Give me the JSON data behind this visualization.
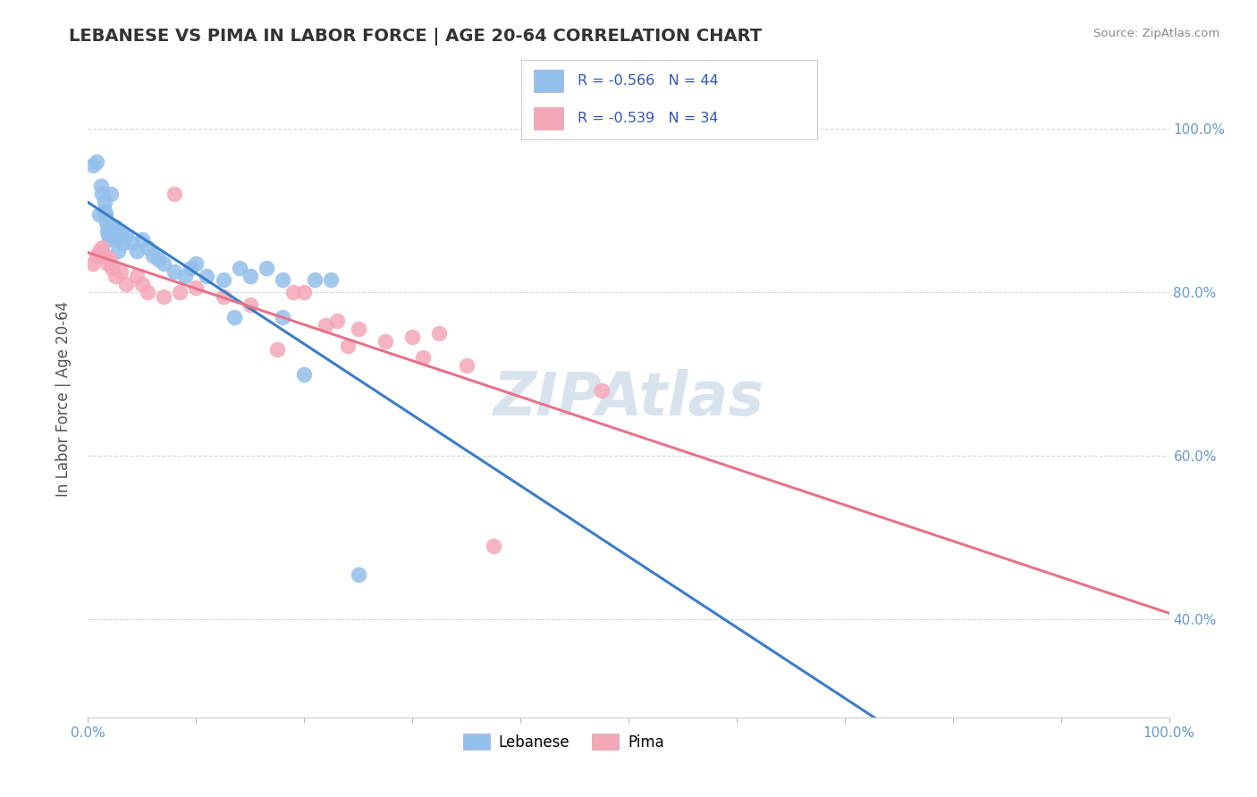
{
  "title": "LEBANESE VS PIMA IN LABOR FORCE | AGE 20-64 CORRELATION CHART",
  "source_text": "Source: ZipAtlas.com",
  "ylabel": "In Labor Force | Age 20-64",
  "xlim": [
    0.0,
    1.0
  ],
  "ylim": [
    0.28,
    1.06
  ],
  "xtick_positions": [
    0.0,
    0.1,
    0.2,
    0.3,
    0.4,
    0.5,
    0.6,
    0.7,
    0.8,
    0.9,
    1.0
  ],
  "xtick_labels_show": [
    0.0,
    1.0
  ],
  "ytick_positions": [
    0.4,
    0.6,
    0.8,
    1.0
  ],
  "legend_R_lebanese": "R = -0.566",
  "legend_N_lebanese": "N = 44",
  "legend_R_pima": "R = -0.539",
  "legend_N_pima": "N = 34",
  "lebanese_color": "#92BFEC",
  "pima_color": "#F4A7B9",
  "lebanese_line_color": "#3A7EC8",
  "pima_line_color": "#E8728A",
  "watermark_color": "#C8D8E8",
  "background_color": "#FFFFFF",
  "grid_color": "#CCCCCC",
  "title_color": "#333333",
  "axis_label_color": "#555555",
  "tick_label_color": "#6699CC",
  "source_color": "#888888",
  "legend_R_color": "#3355BB",
  "lebanese_x": [
    0.005,
    0.008,
    0.01,
    0.012,
    0.013,
    0.015,
    0.015,
    0.016,
    0.017,
    0.018,
    0.019,
    0.02,
    0.021,
    0.022,
    0.023,
    0.025,
    0.026,
    0.028,
    0.03,
    0.032,
    0.035,
    0.04,
    0.045,
    0.05,
    0.055,
    0.06,
    0.065,
    0.07,
    0.08,
    0.09,
    0.095,
    0.1,
    0.11,
    0.125,
    0.135,
    0.14,
    0.15,
    0.165,
    0.18,
    0.2,
    0.21,
    0.225,
    0.25,
    0.18
  ],
  "lebanese_y": [
    0.955,
    0.96,
    0.895,
    0.93,
    0.92,
    0.91,
    0.9,
    0.895,
    0.885,
    0.875,
    0.87,
    0.865,
    0.92,
    0.88,
    0.87,
    0.88,
    0.865,
    0.85,
    0.87,
    0.86,
    0.87,
    0.86,
    0.85,
    0.865,
    0.855,
    0.845,
    0.84,
    0.835,
    0.825,
    0.82,
    0.83,
    0.835,
    0.82,
    0.815,
    0.77,
    0.83,
    0.82,
    0.83,
    0.815,
    0.7,
    0.815,
    0.815,
    0.455,
    0.77
  ],
  "pima_x": [
    0.005,
    0.008,
    0.01,
    0.013,
    0.015,
    0.018,
    0.02,
    0.022,
    0.025,
    0.03,
    0.035,
    0.045,
    0.05,
    0.055,
    0.07,
    0.08,
    0.085,
    0.1,
    0.125,
    0.15,
    0.175,
    0.19,
    0.2,
    0.22,
    0.23,
    0.24,
    0.25,
    0.275,
    0.3,
    0.31,
    0.325,
    0.35,
    0.375,
    0.475
  ],
  "pima_y": [
    0.835,
    0.845,
    0.85,
    0.855,
    0.845,
    0.835,
    0.84,
    0.83,
    0.82,
    0.825,
    0.81,
    0.82,
    0.81,
    0.8,
    0.795,
    0.92,
    0.8,
    0.805,
    0.795,
    0.785,
    0.73,
    0.8,
    0.8,
    0.76,
    0.765,
    0.735,
    0.755,
    0.74,
    0.745,
    0.72,
    0.75,
    0.71,
    0.49,
    0.68
  ]
}
